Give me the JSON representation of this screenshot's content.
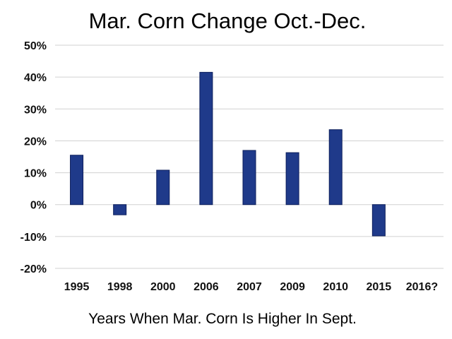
{
  "chart_data": {
    "type": "bar",
    "title": "Mar. Corn Change Oct.-Dec.",
    "xlabel": "Years When Mar. Corn Is Higher In Sept.",
    "ylabel": "",
    "categories": [
      "1995",
      "1998",
      "2000",
      "2006",
      "2007",
      "2009",
      "2010",
      "2015",
      "2016?"
    ],
    "values": [
      15.5,
      -3.2,
      10.8,
      41.5,
      17.0,
      16.3,
      23.5,
      -9.8,
      null
    ],
    "ylim": [
      -20,
      50
    ],
    "yticks": [
      50,
      40,
      30,
      20,
      10,
      0,
      -10,
      -20
    ],
    "ytick_labels": [
      "50%",
      "40%",
      "30%",
      "20%",
      "10%",
      "0%",
      "-10%",
      "-20%"
    ],
    "grid": true,
    "bar_color": "#1f3a8a"
  }
}
